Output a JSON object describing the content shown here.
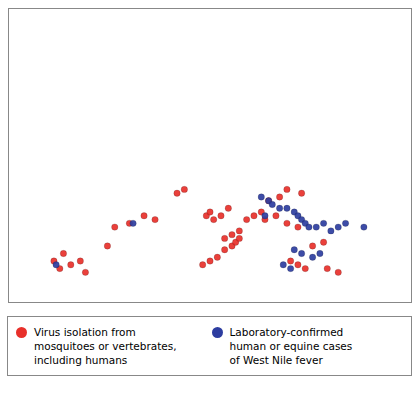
{
  "chart_data": {
    "type": "scatter",
    "xlim": [
      -15,
      40
    ],
    "ylim": [
      33,
      72
    ],
    "tick_labels": false,
    "grid": false,
    "series": [
      {
        "name": "Virus isolation from\nmosquitoes or vertebrates,\nincluding humans",
        "color": "#e8302a",
        "x": [
          -8.8,
          -8.0,
          -7.5,
          -6.5,
          -5.2,
          -4.5,
          -1.5,
          -0.5,
          1.5,
          3.5,
          5.0,
          8.0,
          9.0,
          12.0,
          12.5,
          13.0,
          14.0,
          15.0,
          14.5,
          15.5,
          16.5,
          11.5,
          12.5,
          13.5,
          14.5,
          15.5,
          16.0,
          16.5,
          17.5,
          18.5,
          19.5,
          20.5,
          22.0,
          23.0,
          25.0,
          20.0,
          21.5,
          23.0,
          24.5,
          26.5,
          28.0,
          28.5,
          30.0,
          23.5,
          24.5,
          25.5
        ],
        "values": [
          38.5,
          37.5,
          39.5,
          38.0,
          38.5,
          37.0,
          40.5,
          43.0,
          43.5,
          44.5,
          44.0,
          47.5,
          48.0,
          44.5,
          45.0,
          44.0,
          44.5,
          45.5,
          41.5,
          42.0,
          42.5,
          38.0,
          38.5,
          39.0,
          40.0,
          40.5,
          41.0,
          41.5,
          44.0,
          44.5,
          45.0,
          46.5,
          47.0,
          48.0,
          47.5,
          44.0,
          44.5,
          43.5,
          43.0,
          40.5,
          41.0,
          37.5,
          37.0,
          38.5,
          38.0,
          37.5
        ]
      },
      {
        "name": "Laboratory-confirmed\nhuman or equine cases\nof West Nile fever",
        "color": "#2d3da0",
        "x": [
          -8.5,
          2.0,
          19.5,
          20.5,
          21.0,
          22.0,
          23.0,
          24.0,
          24.5,
          25.0,
          25.5,
          26.0,
          27.0,
          28.0,
          29.0,
          30.0,
          31.0,
          33.5,
          24.0,
          25.0,
          26.5,
          27.5,
          22.5,
          23.5,
          20.0
        ],
        "values": [
          38.0,
          43.5,
          47.0,
          46.5,
          46.0,
          45.5,
          45.5,
          45.0,
          44.5,
          44.0,
          43.5,
          43.0,
          43.0,
          43.5,
          42.5,
          43.0,
          43.5,
          43.0,
          40.0,
          39.5,
          39.0,
          39.5,
          38.0,
          37.5,
          44.5
        ]
      }
    ]
  }
}
